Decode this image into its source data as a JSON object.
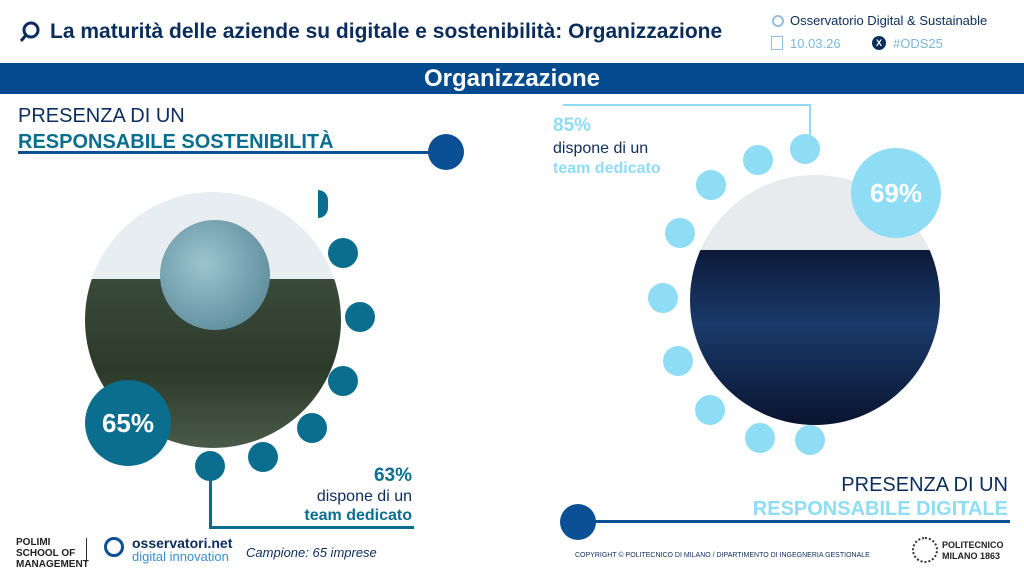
{
  "header": {
    "title": "La maturità delle aziende su digitale e sostenibilità: Organizzazione",
    "observatory": "Osservatorio Digital & Sustainable",
    "date": "10.03.26",
    "hashtag": "#ODS25"
  },
  "section_title": "Organizzazione",
  "left": {
    "heading_line1": "PRESENZA DI UN",
    "heading_line2": "RESPONSABILE SOSTENIBILITÀ",
    "main_percent": "65%",
    "team_percent": "63%",
    "team_line1": "dispone di un",
    "team_line2": "team dedicato",
    "color": "#0b6e8f"
  },
  "right": {
    "heading_line1": "PRESENZA DI UN",
    "heading_line2": "RESPONSABILE DIGITALE",
    "main_percent": "69%",
    "team_percent": "85%",
    "team_line1": "dispone di un",
    "team_line2": "team dedicato",
    "color": "#8fdcf5"
  },
  "footer": {
    "polimi_logo": "POLIMI SCHOOL OF MANAGEMENT",
    "osservatori_line1": "osservatori.net",
    "osservatori_line2": "digital innovation",
    "sample": "Campione: 65 imprese",
    "copyright": "COPYRIGHT © POLITECNICO DI MILANO / DIPARTIMENTO DI INGEGNERIA GESTIONALE",
    "politecnico_logo": "POLITECNICO MILANO 1863"
  }
}
